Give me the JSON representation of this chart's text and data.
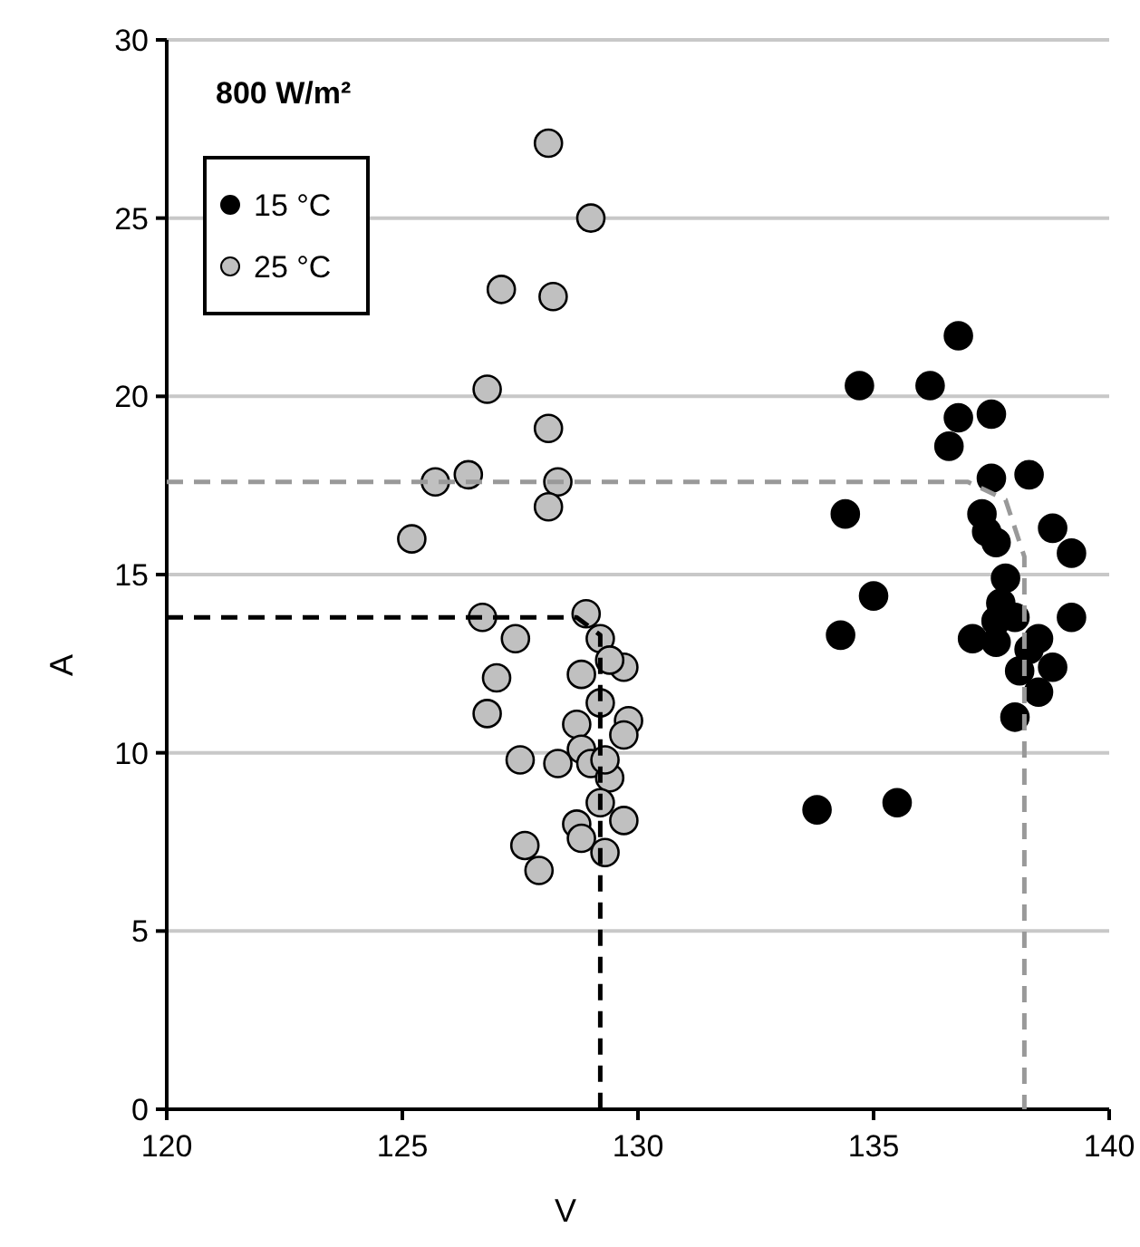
{
  "chart_data": {
    "type": "scatter",
    "xlabel": "V",
    "ylabel": "A",
    "xlim": [
      120,
      140
    ],
    "xticks": [
      120,
      125,
      130,
      135,
      140
    ],
    "ylim": [
      0,
      30
    ],
    "yticks": [
      0,
      5,
      10,
      15,
      20,
      25,
      30
    ],
    "grid": "y",
    "legend": "top left",
    "marker": "circle",
    "annotations": [
      "800 W/m²"
    ],
    "series": [
      {
        "name": "15 °C",
        "color": "#000000",
        "x": [
          136.8,
          134.7,
          136.2,
          136.8,
          137.5,
          136.6,
          137.5,
          138.3,
          134.4,
          137.3,
          137.4,
          137.6,
          138.8,
          139.2,
          137.8,
          135.0,
          137.7,
          138.0,
          139.2,
          134.3,
          137.1,
          137.6,
          138.5,
          138.3,
          138.8,
          138.1,
          138.5,
          138.0,
          133.8,
          135.5,
          137.6
        ],
        "values": [
          21.7,
          20.3,
          20.3,
          19.4,
          19.5,
          18.6,
          17.7,
          17.8,
          16.7,
          16.7,
          16.2,
          15.9,
          16.3,
          15.6,
          14.9,
          14.4,
          14.2,
          13.8,
          13.8,
          13.3,
          13.2,
          13.1,
          13.2,
          12.9,
          12.4,
          12.3,
          11.7,
          11.0,
          8.4,
          8.6,
          13.7
        ]
      },
      {
        "name": "25 °C",
        "color": "#c0c0c0",
        "x": [
          128.1,
          129.0,
          127.1,
          128.2,
          126.8,
          128.1,
          125.7,
          126.4,
          128.3,
          128.1,
          125.2,
          126.7,
          127.4,
          128.9,
          129.2,
          127.0,
          129.7,
          126.8,
          128.7,
          129.8,
          129.7,
          128.8,
          129.0,
          127.5,
          128.3,
          129.4,
          129.7,
          128.7,
          128.8,
          127.6,
          127.9,
          129.3,
          129.2,
          129.3,
          129.2,
          129.4,
          128.8
        ],
        "values": [
          27.1,
          25.0,
          23.0,
          22.8,
          20.2,
          19.1,
          17.6,
          17.8,
          17.6,
          16.9,
          16.0,
          13.8,
          13.2,
          13.9,
          13.2,
          12.1,
          12.4,
          11.1,
          10.8,
          10.9,
          10.5,
          10.1,
          9.7,
          9.8,
          9.7,
          9.3,
          8.1,
          8.0,
          7.6,
          7.4,
          6.7,
          7.2,
          8.6,
          9.8,
          11.4,
          12.6,
          12.2
        ]
      },
      {
        "type": "line",
        "color": "#000000",
        "line_style": "dashed",
        "marker": "none",
        "x": [
          120,
          128.7,
          129.2,
          129.2
        ],
        "values": [
          13.8,
          13.8,
          13.3,
          0
        ]
      },
      {
        "type": "line",
        "color": "#999999",
        "line_style": "dashed",
        "marker": "none",
        "x": [
          120,
          137,
          137.8,
          138.2,
          138.2
        ],
        "values": [
          17.6,
          17.6,
          17.1,
          15.5,
          0
        ]
      }
    ]
  }
}
